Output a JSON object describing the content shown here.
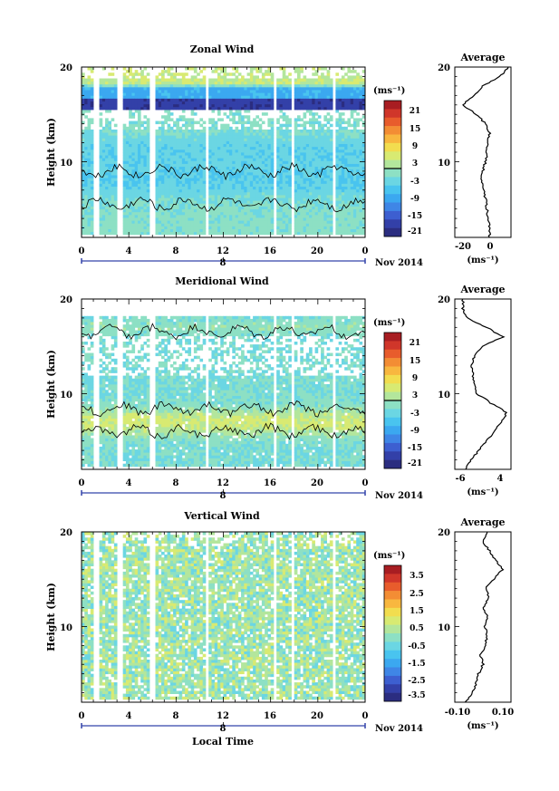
{
  "chart_data": [
    {
      "type": "heatmap",
      "title": "Zonal Wind",
      "ylabel": "Height (km)",
      "ylim": [
        2,
        20
      ],
      "y_ticks": [
        "10",
        "20"
      ],
      "x_ticks": [
        "0",
        "4",
        "8",
        "12",
        "16",
        "20",
        "0"
      ],
      "date_marker": "8",
      "date_label": "Nov 2014",
      "colorbar": {
        "unit": "(ms⁻¹)",
        "ticks": [
          "21",
          "15",
          "9",
          "3",
          "-3",
          "-9",
          "-15",
          "-21"
        ],
        "range": [
          -24,
          24
        ]
      },
      "profile": {
        "title": "Average",
        "x_ticks": [
          "-20",
          "0"
        ],
        "xlabel": "(ms⁻¹)",
        "xlim": [
          -26,
          16
        ],
        "heights": [
          2,
          3,
          4,
          5,
          6,
          7,
          8,
          9,
          10,
          11,
          12,
          13,
          14,
          15,
          16,
          17,
          18,
          19,
          20
        ],
        "values": [
          0,
          0,
          -1,
          -2,
          -3,
          -4,
          -6,
          -5,
          -3,
          -2,
          -1,
          0,
          -3,
          -10,
          -20,
          -12,
          -5,
          8,
          14
        ]
      }
    },
    {
      "type": "heatmap",
      "title": "Meridional Wind",
      "ylabel": "Height (km)",
      "ylim": [
        2,
        20
      ],
      "y_ticks": [
        "10",
        "20"
      ],
      "x_ticks": [
        "0",
        "4",
        "8",
        "12",
        "16",
        "20",
        "0"
      ],
      "date_marker": "8",
      "date_label": "Nov 2014",
      "colorbar": {
        "unit": "(ms⁻¹)",
        "ticks": [
          "21",
          "15",
          "9",
          "3",
          "-3",
          "-9",
          "-15",
          "-21"
        ],
        "range": [
          -24,
          24
        ]
      },
      "profile": {
        "title": "Average",
        "x_ticks": [
          "-6",
          "4"
        ],
        "xlabel": "(ms⁻¹)",
        "xlim": [
          -8,
          6
        ],
        "heights": [
          2,
          3,
          4,
          5,
          6,
          7,
          8,
          9,
          10,
          11,
          12,
          13,
          14,
          15,
          16,
          17,
          18,
          19,
          20
        ],
        "values": [
          -5.5,
          -4,
          -2,
          0,
          2,
          3.5,
          5,
          1,
          -2.5,
          -3,
          -3.5,
          -4,
          -3,
          -1,
          4,
          0,
          -5,
          -6,
          -6
        ]
      }
    },
    {
      "type": "heatmap",
      "title": "Vertical Wind",
      "ylabel": "Height (km)",
      "xlabel": "Local Time",
      "ylim": [
        2,
        20
      ],
      "y_ticks": [
        "10",
        "20"
      ],
      "x_ticks": [
        "0",
        "4",
        "8",
        "12",
        "16",
        "20",
        "0"
      ],
      "date_marker": "8",
      "date_label": "Nov 2014",
      "colorbar": {
        "unit": "(ms⁻¹)",
        "ticks": [
          "3.5",
          "2.5",
          "1.5",
          "0.5",
          "-0.5",
          "-1.5",
          "-2.5",
          "-3.5"
        ],
        "range": [
          -4,
          4
        ]
      },
      "profile": {
        "title": "Average",
        "x_ticks": [
          "-0.10",
          "0.10"
        ],
        "xlabel": "(ms⁻¹)",
        "xlim": [
          -0.13,
          0.13
        ],
        "heights": [
          2,
          3,
          4,
          5,
          6,
          7,
          8,
          9,
          10,
          11,
          12,
          13,
          14,
          15,
          16,
          17,
          18,
          19,
          20
        ],
        "values": [
          -0.08,
          -0.05,
          -0.03,
          -0.02,
          0.0,
          -0.01,
          0.01,
          0.02,
          0.01,
          0.02,
          0.0,
          0.03,
          0.01,
          0.05,
          0.09,
          0.06,
          0.03,
          0.0,
          0.02
        ]
      }
    }
  ]
}
